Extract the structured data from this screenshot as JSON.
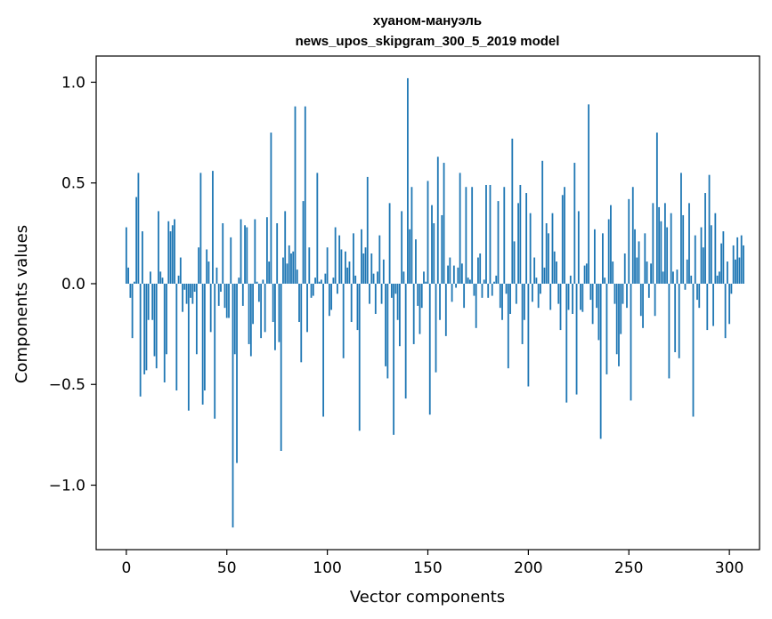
{
  "chart_data": {
    "type": "bar",
    "title": "хуаном-мануэль\nnews_upos_skipgram_300_5_2019 model",
    "title_lines": [
      "хуаном-мануэль",
      "news_upos_skipgram_300_5_2019 model"
    ],
    "xlabel": "Vector components",
    "ylabel": "Components values",
    "xlim": [
      -15,
      315
    ],
    "ylim": [
      -1.32,
      1.13
    ],
    "xticks": [
      0,
      50,
      100,
      150,
      200,
      250,
      300
    ],
    "xtick_labels": [
      "0",
      "50",
      "100",
      "150",
      "200",
      "250",
      "300"
    ],
    "yticks": [
      -1.0,
      -0.5,
      0.0,
      0.5,
      1.0
    ],
    "ytick_labels": [
      "−1.0",
      "−0.5",
      "0.0",
      "0.5",
      "1.0"
    ],
    "grid": false,
    "bar_color": "#1f77b4",
    "values": [
      0.28,
      0.08,
      -0.07,
      -0.27,
      0.01,
      0.43,
      0.55,
      -0.56,
      0.26,
      -0.45,
      -0.43,
      -0.18,
      0.06,
      -0.18,
      -0.36,
      -0.42,
      0.36,
      0.06,
      0.03,
      -0.49,
      -0.35,
      0.31,
      0.26,
      0.29,
      0.32,
      -0.53,
      0.04,
      0.13,
      -0.14,
      -0.03,
      -0.1,
      -0.63,
      -0.07,
      -0.1,
      -0.04,
      -0.35,
      0.18,
      0.55,
      -0.6,
      -0.53,
      0.17,
      0.11,
      -0.24,
      0.56,
      -0.67,
      0.08,
      -0.11,
      -0.04,
      0.3,
      -0.12,
      -0.17,
      -0.17,
      0.23,
      -1.21,
      -0.35,
      -0.89,
      0.03,
      0.32,
      -0.11,
      0.29,
      0.28,
      -0.3,
      -0.36,
      -0.2,
      0.32,
      0.01,
      -0.09,
      -0.27,
      0.02,
      -0.24,
      0.33,
      0.11,
      0.75,
      -0.19,
      -0.33,
      0.3,
      -0.29,
      -0.83,
      0.13,
      0.36,
      0.1,
      0.19,
      0.15,
      0.16,
      0.88,
      0.07,
      -0.19,
      -0.39,
      0.41,
      0.88,
      -0.24,
      0.18,
      -0.07,
      -0.06,
      0.03,
      0.55,
      0.01,
      0.02,
      -0.66,
      0.05,
      0.18,
      -0.16,
      -0.13,
      0.03,
      0.28,
      -0.05,
      0.24,
      0.17,
      -0.37,
      0.16,
      0.08,
      0.11,
      -0.19,
      0.25,
      0.04,
      -0.23,
      -0.73,
      0.27,
      0.15,
      0.18,
      0.53,
      -0.1,
      0.15,
      0.05,
      -0.15,
      0.06,
      0.24,
      -0.1,
      0.12,
      -0.41,
      -0.47,
      0.4,
      -0.07,
      -0.75,
      -0.05,
      -0.18,
      -0.31,
      0.36,
      0.06,
      -0.57,
      1.02,
      0.27,
      0.48,
      -0.3,
      0.22,
      -0.11,
      -0.25,
      -0.12,
      0.06,
      0.01,
      0.51,
      -0.65,
      0.39,
      0.3,
      -0.44,
      0.63,
      -0.18,
      0.34,
      0.6,
      -0.26,
      0.09,
      0.13,
      -0.09,
      0.09,
      -0.02,
      0.08,
      0.55,
      0.1,
      -0.12,
      0.48,
      0.03,
      0.02,
      0.48,
      -0.06,
      -0.22,
      0.13,
      0.15,
      -0.07,
      0.02,
      0.49,
      -0.07,
      0.49,
      -0.06,
      0.01,
      0.04,
      0.41,
      -0.12,
      -0.18,
      0.48,
      -0.05,
      -0.42,
      -0.15,
      0.72,
      0.21,
      -0.1,
      0.4,
      0.49,
      -0.3,
      -0.18,
      0.45,
      -0.51,
      0.35,
      -0.09,
      0.13,
      0.03,
      -0.12,
      -0.05,
      0.61,
      0.08,
      0.3,
      0.25,
      -0.13,
      0.35,
      0.16,
      0.11,
      -0.1,
      -0.23,
      0.44,
      0.48,
      -0.59,
      -0.13,
      0.04,
      -0.15,
      0.6,
      -0.55,
      0.36,
      -0.13,
      -0.14,
      0.09,
      0.1,
      0.89,
      -0.08,
      -0.2,
      0.27,
      -0.12,
      -0.28,
      -0.77,
      0.25,
      0.03,
      -0.45,
      0.32,
      0.39,
      0.11,
      -0.1,
      -0.35,
      -0.41,
      -0.25,
      -0.1,
      0.15,
      -0.12,
      0.42,
      -0.58,
      0.48,
      0.27,
      0.13,
      0.21,
      -0.16,
      -0.22,
      0.25,
      0.11,
      -0.07,
      0.1,
      0.4,
      -0.16,
      0.75,
      0.38,
      0.31,
      0.06,
      0.4,
      0.28,
      -0.47,
      0.35,
      0.06,
      -0.34,
      0.07,
      -0.37,
      0.55,
      0.34,
      -0.03,
      0.12,
      0.4,
      0.04,
      -0.66,
      0.24,
      -0.08,
      -0.12,
      0.28,
      0.18,
      0.45,
      -0.23,
      0.54,
      0.29,
      -0.21,
      0.35,
      0.04,
      0.06,
      0.2,
      0.26,
      -0.27,
      0.11,
      -0.2,
      -0.05,
      0.19,
      0.12,
      0.23,
      0.13,
      0.24,
      0.19
    ]
  }
}
